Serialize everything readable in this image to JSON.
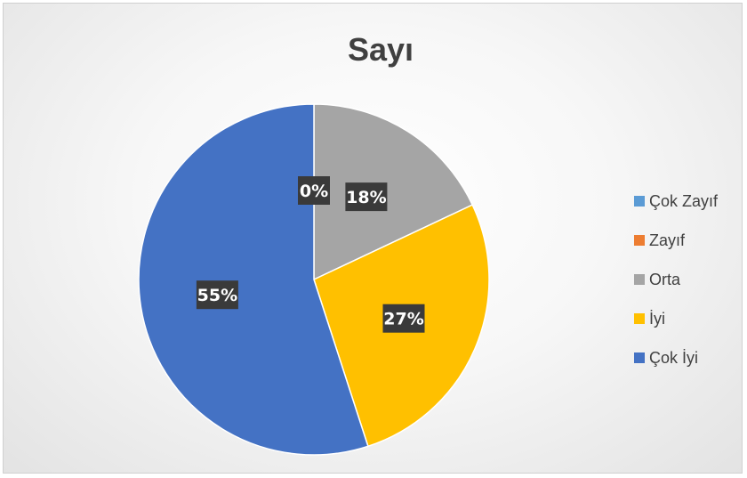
{
  "chart_data": {
    "type": "pie",
    "title": "Sayı",
    "categories": [
      "Çok Zayıf",
      "Zayıf",
      "Orta",
      "İyi",
      "Çok İyi"
    ],
    "values": [
      0,
      0,
      18,
      27,
      55
    ],
    "data_labels": [
      "0%",
      "",
      "18%",
      "27%",
      "55%"
    ],
    "colors": [
      "#5B9BD5",
      "#ED7D31",
      "#A5A5A5",
      "#FFC000",
      "#4472C4"
    ],
    "legend_position": "right"
  }
}
